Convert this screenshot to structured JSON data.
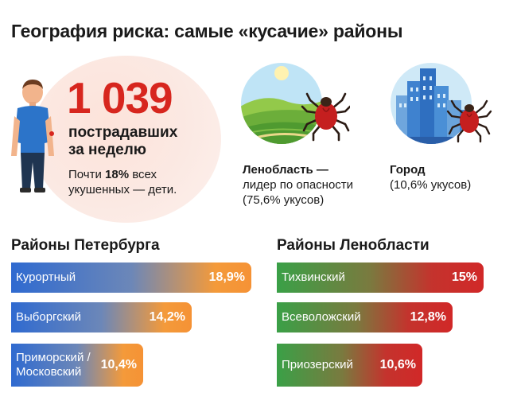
{
  "title": "География риска: самые «кусачие» районы",
  "hero": {
    "number": "1 039",
    "victims_line1": "пострадавших",
    "victims_line2": "за неделю",
    "note_prefix": "Почти ",
    "note_bold": "18%",
    "note_suffix": " всех",
    "note_line2": "укушенных — дети."
  },
  "regions": {
    "lenobl": {
      "name": "Ленобласть —",
      "line2": "лидер по опасности",
      "line3": "(75,6% укусов)",
      "share": 75.6
    },
    "city": {
      "name": "Город",
      "line2": "(10,6% укусов)",
      "share": 10.6
    }
  },
  "colors": {
    "accent_red": "#d7261e",
    "spb_bar_start": "#2f6ad0",
    "spb_bar_end": "#f59235",
    "lo_bar_start": "#3aa047",
    "lo_bar_end": "#d12828"
  },
  "icons": [
    "person-icon",
    "field-tick-icon",
    "city-tick-icon"
  ],
  "chart_data": [
    {
      "type": "bar",
      "orientation": "horizontal",
      "title": "Районы Петербурга",
      "categories": [
        "Курортный",
        "Выборгский",
        "Приморский / Московский"
      ],
      "category_lines": [
        [
          "Курортный"
        ],
        [
          "Выборгский"
        ],
        [
          "Приморский /",
          "Московский"
        ]
      ],
      "values": [
        18.9,
        14.2,
        10.4
      ],
      "value_labels": [
        "18,9%",
        "14,2%",
        "10,4%"
      ],
      "unit": "%"
    },
    {
      "type": "bar",
      "orientation": "horizontal",
      "title": "Районы Ленобласти",
      "categories": [
        "Тихвинский",
        "Всеволожский",
        "Приозерский"
      ],
      "category_lines": [
        [
          "Тихвинский"
        ],
        [
          "Всеволожский"
        ],
        [
          "Приозерский"
        ]
      ],
      "values": [
        15,
        12.8,
        10.6
      ],
      "value_labels": [
        "15%",
        "12,8%",
        "10,6%"
      ],
      "unit": "%"
    }
  ]
}
